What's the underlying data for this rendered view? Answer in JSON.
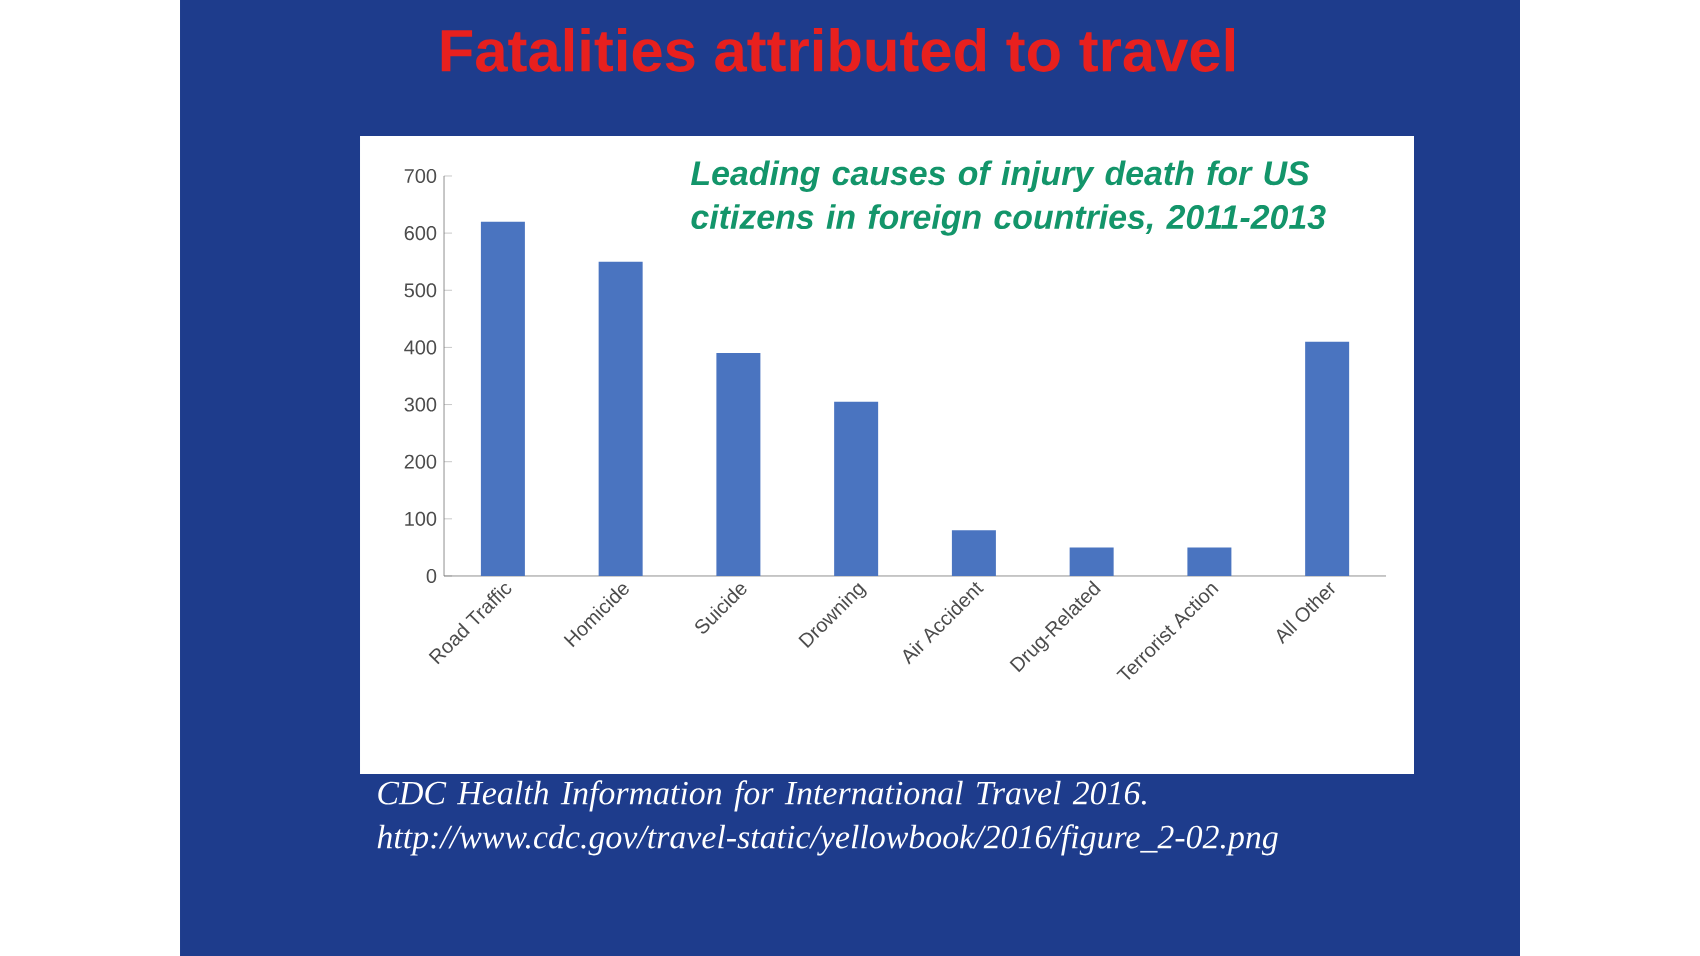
{
  "chart_data": {
    "type": "bar",
    "title": "Fatalities attributed to travel",
    "subtitle": "Leading causes of injury death for US citizens in foreign countries, 2011-2013",
    "categories": [
      "Road Traffic",
      "Homicide",
      "Suicide",
      "Drowning",
      "Air Accident",
      "Drug-Related",
      "Terrorist Action",
      "All Other"
    ],
    "values": [
      620,
      550,
      390,
      305,
      80,
      50,
      50,
      410
    ],
    "color": "#4a74c0",
    "ylim": [
      0,
      700
    ],
    "yticks": [
      0,
      100,
      200,
      300,
      400,
      500,
      600,
      700
    ],
    "annotations": [
      "CDC Health Information for International Travel 2016.",
      "http://www.cdc.gov/travel-static/yellowbook/2016/figure_2-02.png"
    ]
  }
}
